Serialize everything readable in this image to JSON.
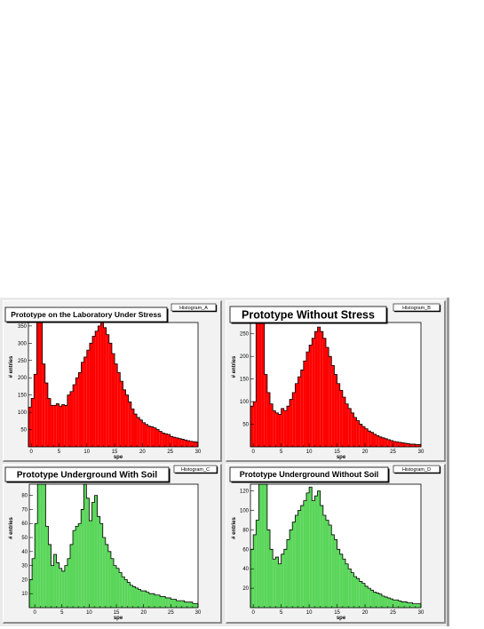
{
  "chart_data": [
    {
      "type": "histogram",
      "name": "Histogram_A",
      "title": "Prototype on the Laboratory Under Stress",
      "xlabel": "spe",
      "ylabel": "# entries",
      "xlim": [
        -0.5,
        30
      ],
      "ylim": [
        0,
        360
      ],
      "xticks": [
        0,
        5,
        10,
        15,
        20,
        25,
        30
      ],
      "yticks": [
        50,
        100,
        150,
        200,
        250,
        300,
        350
      ],
      "fill": "#ff0000",
      "bin_width": 0.5,
      "values": [
        115,
        140,
        210,
        360,
        360,
        240,
        185,
        140,
        120,
        120,
        125,
        118,
        122,
        120,
        150,
        160,
        180,
        200,
        215,
        245,
        260,
        280,
        300,
        320,
        335,
        350,
        360,
        345,
        325,
        300,
        270,
        240,
        215,
        190,
        165,
        150,
        130,
        110,
        95,
        85,
        78,
        70,
        65,
        60,
        58,
        55,
        50,
        45,
        40,
        38,
        36,
        30,
        28,
        26,
        24,
        22,
        20,
        18,
        16,
        15,
        14,
        12,
        10
      ]
    },
    {
      "type": "histogram",
      "name": "Histogram_B",
      "title": "Prototype Without Stress",
      "xlabel": "spe",
      "ylabel": "# entries",
      "xlim": [
        -0.5,
        30
      ],
      "ylim": [
        0,
        275
      ],
      "xticks": [
        0,
        5,
        10,
        15,
        20,
        25,
        30
      ],
      "yticks": [
        50,
        100,
        150,
        200,
        250
      ],
      "fill": "#ff0000",
      "bin_width": 0.5,
      "values": [
        90,
        100,
        275,
        275,
        275,
        160,
        120,
        95,
        80,
        75,
        72,
        85,
        80,
        90,
        105,
        120,
        140,
        155,
        170,
        190,
        210,
        225,
        240,
        255,
        265,
        255,
        240,
        220,
        200,
        180,
        160,
        140,
        125,
        110,
        95,
        85,
        75,
        65,
        58,
        50,
        45,
        40,
        35,
        32,
        28,
        25,
        22,
        20,
        18,
        16,
        14,
        12,
        11,
        10,
        9,
        8,
        7,
        6,
        6,
        5,
        5,
        4,
        4
      ]
    },
    {
      "type": "histogram",
      "name": "Histogram_C",
      "title": "Prototype Underground With Soil",
      "xlabel": "spe",
      "ylabel": "# entries",
      "xlim": [
        -1,
        30
      ],
      "ylim": [
        0,
        88
      ],
      "xticks": [
        0,
        5,
        10,
        15,
        20,
        25,
        30
      ],
      "yticks": [
        10,
        20,
        30,
        40,
        50,
        60,
        70,
        80
      ],
      "fill": "#5ad65a",
      "bin_width": 0.5,
      "values": [
        20,
        35,
        60,
        88,
        88,
        88,
        58,
        45,
        30,
        38,
        32,
        28,
        26,
        30,
        35,
        45,
        55,
        58,
        60,
        70,
        88,
        78,
        62,
        75,
        80,
        65,
        60,
        50,
        45,
        40,
        35,
        30,
        28,
        25,
        22,
        20,
        18,
        16,
        15,
        14,
        13,
        12,
        12,
        11,
        10,
        10,
        9,
        9,
        8,
        8,
        7,
        7,
        6,
        6,
        5,
        5,
        5,
        4,
        4,
        4,
        3,
        3
      ]
    },
    {
      "type": "histogram",
      "name": "Histogram_D",
      "title": "Prototype Underground Without Soil",
      "xlabel": "spe",
      "ylabel": "# entries",
      "xlim": [
        -0.5,
        30
      ],
      "ylim": [
        0,
        127
      ],
      "xticks": [
        0,
        5,
        10,
        15,
        20,
        25,
        30
      ],
      "yticks": [
        20,
        40,
        60,
        80,
        100,
        120
      ],
      "fill": "#5ad65a",
      "bin_width": 0.5,
      "values": [
        60,
        75,
        90,
        127,
        127,
        127,
        80,
        60,
        50,
        52,
        45,
        55,
        60,
        70,
        80,
        88,
        95,
        100,
        105,
        110,
        118,
        124,
        110,
        115,
        120,
        105,
        95,
        90,
        85,
        75,
        70,
        60,
        55,
        50,
        45,
        40,
        36,
        32,
        30,
        27,
        25,
        22,
        20,
        18,
        16,
        15,
        14,
        12,
        11,
        10,
        9,
        8,
        8,
        7,
        6,
        6,
        5,
        5,
        4,
        4,
        4,
        3,
        3
      ]
    }
  ]
}
